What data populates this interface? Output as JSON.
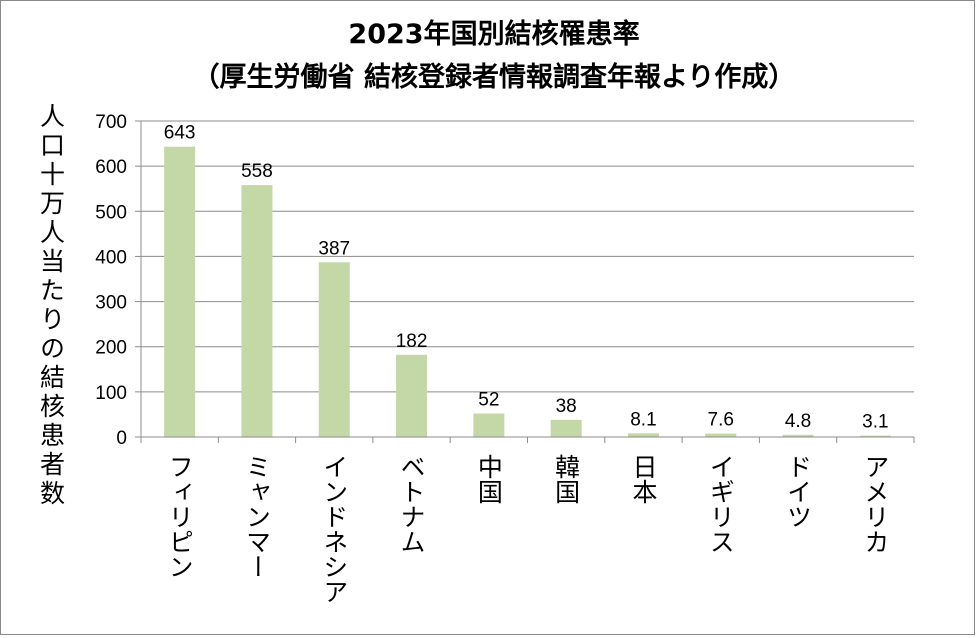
{
  "chart_data": {
    "type": "bar",
    "title": "2023年国別結核罹患率",
    "subtitle": "（厚生労働省 結核登録者情報調査年報より作成）",
    "ylabel": "人口十万人当たりの結核患者数",
    "xlabel": "",
    "categories": [
      "フィリピン",
      "ミャンマー",
      "インドネシア",
      "ベトナム",
      "中国",
      "韓国",
      "日本",
      "イギリス",
      "ドイツ",
      "アメリカ"
    ],
    "values": [
      643,
      558,
      387,
      182,
      52,
      38,
      8.1,
      7.6,
      4.8,
      3.1
    ],
    "value_labels": [
      "643",
      "558",
      "387",
      "182",
      "52",
      "38",
      "8.1",
      "7.6",
      "4.8",
      "3.1"
    ],
    "ylim": [
      0,
      700
    ],
    "yticks": [
      0,
      100,
      200,
      300,
      400,
      500,
      600,
      700
    ],
    "grid": true,
    "legend": "none",
    "colors": {
      "bar": "#c4d7a6",
      "grid": "#8c8c8c",
      "axis": "#8c8c8c"
    }
  }
}
